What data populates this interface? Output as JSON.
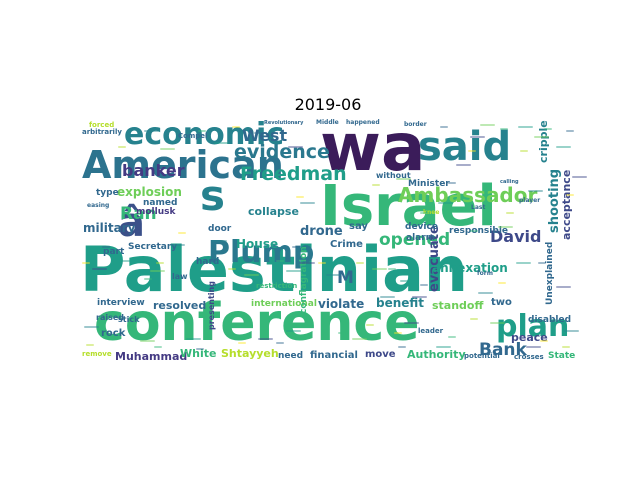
{
  "chart_data": {
    "type": "wordcloud",
    "title": "2019-06",
    "colormap": [
      "#440154",
      "#482878",
      "#3e4989",
      "#31688e",
      "#26828e",
      "#1f9e89",
      "#35b779",
      "#6ece58",
      "#b5de2b",
      "#fde725"
    ],
    "words": [
      {
        "text": "Palestinian",
        "weight": 100,
        "color": "#1f9e89"
      },
      {
        "text": "conference",
        "weight": 88,
        "color": "#35b779"
      },
      {
        "text": "wa",
        "weight": 85,
        "color": "#3b1c5a"
      },
      {
        "text": "Israel",
        "weight": 70,
        "color": "#35b779"
      },
      {
        "text": "American",
        "weight": 62,
        "color": "#2c738e"
      },
      {
        "text": "said",
        "weight": 58,
        "color": "#26828e"
      },
      {
        "text": "â",
        "weight": 50,
        "color": "#3b5089"
      },
      {
        "text": "s",
        "weight": 45,
        "color": "#26828e"
      },
      {
        "text": "Plump",
        "weight": 40,
        "color": "#2a788e"
      },
      {
        "text": "economic",
        "weight": 36,
        "color": "#26828e"
      },
      {
        "text": "plan",
        "weight": 35,
        "color": "#1f9e89"
      },
      {
        "text": "Ambassador",
        "weight": 28,
        "color": "#6ece58"
      },
      {
        "text": "evidence",
        "weight": 26,
        "color": "#2a788e"
      },
      {
        "text": "Freedman",
        "weight": 24,
        "color": "#1f9e89"
      },
      {
        "text": "West",
        "weight": 23,
        "color": "#31688e"
      },
      {
        "text": "banker",
        "weight": 22,
        "color": "#443a83"
      },
      {
        "text": "opened",
        "weight": 22,
        "color": "#35b779"
      },
      {
        "text": "Bank",
        "weight": 22,
        "color": "#31688e"
      },
      {
        "text": "David",
        "weight": 21,
        "color": "#3e4989"
      },
      {
        "text": "Ran",
        "weight": 20,
        "color": "#35b779"
      },
      {
        "text": "M",
        "weight": 20,
        "color": "#31688e"
      },
      {
        "text": "explosion",
        "weight": 17,
        "color": "#6ece58"
      },
      {
        "text": "drone",
        "weight": 16,
        "color": "#31688e"
      },
      {
        "text": "evacuate",
        "weight": 16,
        "color": "#3e4989"
      },
      {
        "text": "shooting",
        "weight": 16,
        "color": "#26828e"
      },
      {
        "text": "military",
        "weight": 15,
        "color": "#31688e"
      },
      {
        "text": "collapse",
        "weight": 15,
        "color": "#26828e"
      },
      {
        "text": "House",
        "weight": 15,
        "color": "#1f9e89"
      },
      {
        "text": "annexation",
        "weight": 14,
        "color": "#1f9e89"
      },
      {
        "text": "benefit",
        "weight": 14,
        "color": "#26828e"
      },
      {
        "text": "violate",
        "weight": 14,
        "color": "#31688e"
      },
      {
        "text": "resolved",
        "weight": 14,
        "color": "#31688e"
      },
      {
        "text": "standoff",
        "weight": 14,
        "color": "#6ece58"
      },
      {
        "text": "Authority",
        "weight": 14,
        "color": "#35b779"
      },
      {
        "text": "Shtayyeh",
        "weight": 13,
        "color": "#b5de2b"
      },
      {
        "text": "Muhammad",
        "weight": 13,
        "color": "#443a83"
      },
      {
        "text": "White",
        "weight": 13,
        "color": "#35b779"
      },
      {
        "text": "peace",
        "weight": 13,
        "color": "#3e4989"
      },
      {
        "text": "acceptance",
        "weight": 13,
        "color": "#3e4989"
      },
      {
        "text": "cripple",
        "weight": 12,
        "color": "#26828e"
      },
      {
        "text": "Crime",
        "weight": 12,
        "color": "#31688e"
      },
      {
        "text": "mollusk",
        "weight": 11,
        "color": "#443a83"
      },
      {
        "text": "Secretary",
        "weight": 11,
        "color": "#31688e"
      },
      {
        "text": "financial",
        "weight": 11,
        "color": "#31688e"
      },
      {
        "text": "interview",
        "weight": 11,
        "color": "#31688e"
      },
      {
        "text": "international",
        "weight": 11,
        "color": "#6ece58"
      },
      {
        "text": "rock",
        "weight": 11,
        "color": "#31688e"
      },
      {
        "text": "move",
        "weight": 11,
        "color": "#3e4989"
      },
      {
        "text": "State",
        "weight": 11,
        "color": "#35b779"
      },
      {
        "text": "disabled",
        "weight": 11,
        "color": "#31688e"
      },
      {
        "text": "responsible",
        "weight": 11,
        "color": "#31688e"
      },
      {
        "text": "device",
        "weight": 11,
        "color": "#31688e"
      },
      {
        "text": "Minister",
        "weight": 11,
        "color": "#31688e"
      },
      {
        "text": "named",
        "weight": 11,
        "color": "#31688e"
      },
      {
        "text": "door",
        "weight": 11,
        "color": "#31688e"
      },
      {
        "text": "part",
        "weight": 10,
        "color": "#31688e"
      },
      {
        "text": "hard",
        "weight": 10,
        "color": "#31688e"
      },
      {
        "text": "type",
        "weight": 10,
        "color": "#31688e"
      },
      {
        "text": "say",
        "weight": 10,
        "color": "#31688e"
      },
      {
        "text": "two",
        "weight": 10,
        "color": "#31688e"
      },
      {
        "text": "need",
        "weight": 10,
        "color": "#31688e"
      },
      {
        "text": "alarm",
        "weight": 10,
        "color": "#31688e"
      },
      {
        "text": "Unexplained",
        "weight": 10,
        "color": "#31688e"
      },
      {
        "text": "presenting",
        "weight": 9,
        "color": "#3e4989"
      },
      {
        "text": "stick",
        "weight": 9,
        "color": "#31688e"
      },
      {
        "text": "raised",
        "weight": 9,
        "color": "#31688e"
      },
      {
        "text": "remove",
        "weight": 8,
        "color": "#b5de2b"
      },
      {
        "text": "law",
        "weight": 9,
        "color": "#31688e"
      },
      {
        "text": "conflagration",
        "weight": 9,
        "color": "#35b779"
      },
      {
        "text": "restriction",
        "weight": 8,
        "color": "#35b779"
      },
      {
        "text": "leader",
        "weight": 8,
        "color": "#31688e"
      },
      {
        "text": "potential",
        "weight": 8,
        "color": "#31688e"
      },
      {
        "text": "crosses",
        "weight": 8,
        "color": "#31688e"
      },
      {
        "text": "arbitrarily",
        "weight": 8,
        "color": "#31688e"
      },
      {
        "text": "forced",
        "weight": 8,
        "color": "#b5de2b"
      },
      {
        "text": "Compel",
        "weight": 8,
        "color": "#31688e"
      },
      {
        "text": "without",
        "weight": 8,
        "color": "#31688e"
      },
      {
        "text": "Revolutionary",
        "weight": 7,
        "color": "#31688e"
      },
      {
        "text": "Middle",
        "weight": 7,
        "color": "#31688e"
      },
      {
        "text": "happened",
        "weight": 7,
        "color": "#31688e"
      },
      {
        "text": "border",
        "weight": 7,
        "color": "#31688e"
      },
      {
        "text": "form",
        "weight": 7,
        "color": "#31688e"
      },
      {
        "text": "easing",
        "weight": 7,
        "color": "#31688e"
      },
      {
        "text": "knee",
        "weight": 7,
        "color": "#b5de2b"
      },
      {
        "text": "Last",
        "weight": 7,
        "color": "#31688e"
      },
      {
        "text": "player",
        "weight": 7,
        "color": "#31688e"
      },
      {
        "text": "calling",
        "weight": 6,
        "color": "#31688e"
      }
    ]
  }
}
